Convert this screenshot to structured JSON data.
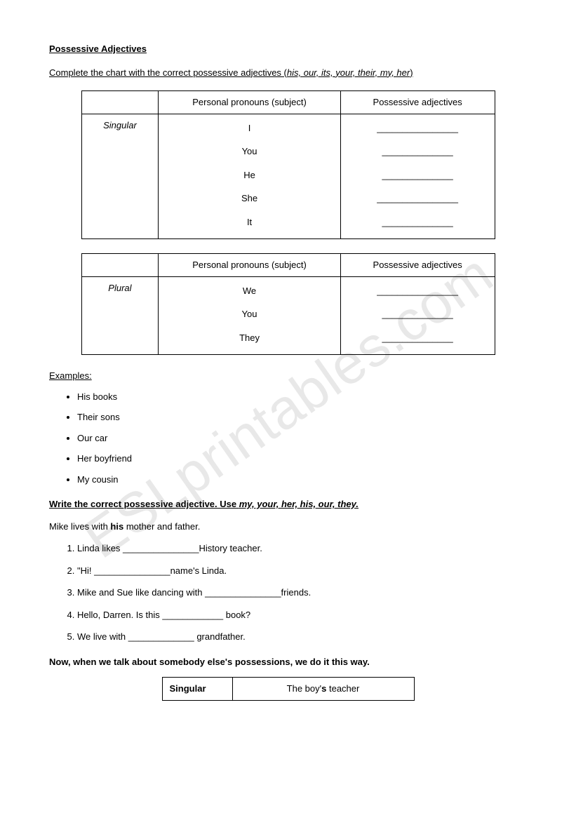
{
  "watermark": "ESLprintables.com",
  "title": "Possessive Adjectives",
  "instruction_pre": "Complete the chart with the correct possessive adjectives (",
  "instruction_italic": "his, our, its, your, their, my, her",
  "instruction_post": ")",
  "table1": {
    "col1_header": "",
    "col2_header": "Personal pronouns (subject)",
    "col3_header": "Possessive adjectives",
    "row_label": "Singular",
    "pronouns": [
      "I",
      "You",
      "He",
      "She",
      "It"
    ],
    "blanks": [
      "________________",
      "______________",
      "______________",
      "________________",
      "______________"
    ]
  },
  "table2": {
    "col1_header": "",
    "col2_header": "Personal pronouns (subject)",
    "col3_header": "Possessive adjectives",
    "row_label": "Plural",
    "pronouns": [
      "We",
      "You",
      "They"
    ],
    "blanks": [
      "________________",
      "______________",
      "______________"
    ]
  },
  "examples_heading": "Examples:",
  "examples": [
    "His books",
    "Their sons",
    "Our car",
    "Her boyfriend",
    "My cousin"
  ],
  "section2_pre": "Write the correct possessive adjective. Use ",
  "section2_italic": "my, your, her, his, our, they.",
  "example_line_pre": "Mike lives with ",
  "example_line_bold": "his",
  "example_line_post": " mother and father.",
  "exercises": [
    "Linda likes _______________History teacher.",
    "\"Hi! _______________name's Linda.",
    "Mike and Sue like dancing with _______________friends.",
    "Hello, Darren. Is this ____________ book?",
    "We live with _____________ grandfather."
  ],
  "section3": "Now, when we talk about somebody else's possessions, we do it this way.",
  "small_table": {
    "label": "Singular",
    "text_pre": "The boy'",
    "text_bold": "s",
    "text_post": " teacher"
  }
}
